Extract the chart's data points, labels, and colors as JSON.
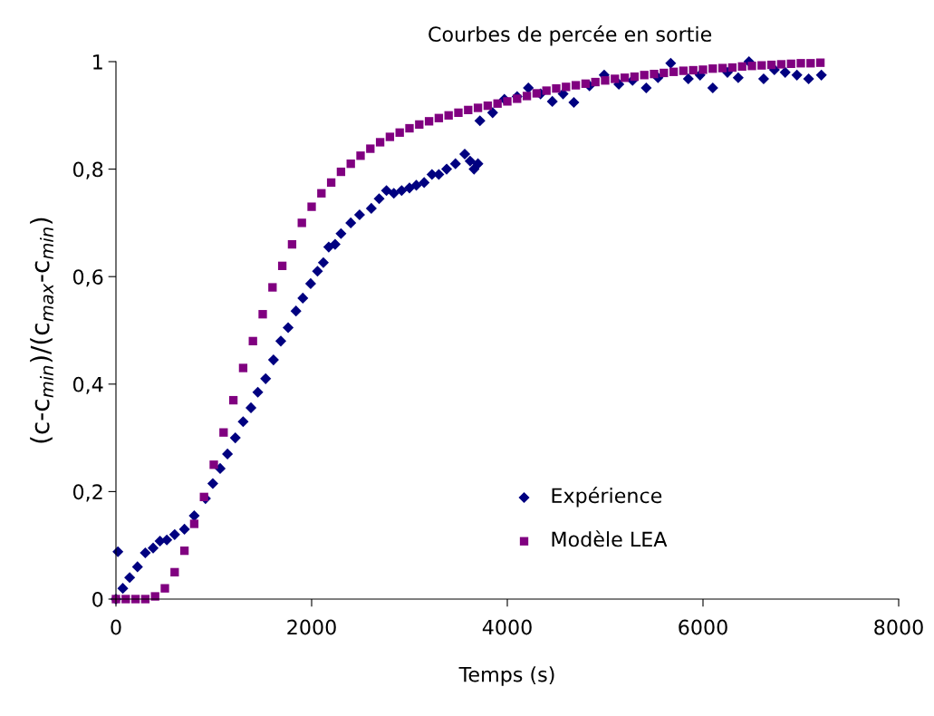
{
  "chart_data": {
    "type": "scatter",
    "title": "Courbes de percée en sortie",
    "xlabel": "Temps (s)",
    "ylabel": "(c-c$_{min}$)/(c$_{max}$-c$_{min}$)",
    "xlim": [
      0,
      8000
    ],
    "xticks": [
      0,
      2000,
      4000,
      6000,
      8000
    ],
    "ylim": [
      0,
      1
    ],
    "yticks": [
      {
        "value": 0,
        "label": "0"
      },
      {
        "value": 0.2,
        "label": "0,2"
      },
      {
        "value": 0.4,
        "label": "0,4"
      },
      {
        "value": 0.6,
        "label": "0,6"
      },
      {
        "value": 0.8,
        "label": "0,8"
      },
      {
        "value": 1,
        "label": "1"
      }
    ],
    "grid": false,
    "legend": "bottom",
    "series": [
      {
        "name": "Expérience",
        "color": "#000080",
        "marker": "diamond",
        "x": [
          0,
          20,
          70,
          140,
          220,
          300,
          380,
          450,
          520,
          600,
          700,
          800,
          915,
          990,
          1065,
          1140,
          1220,
          1300,
          1380,
          1450,
          1530,
          1610,
          1685,
          1760,
          1840,
          1910,
          1990,
          2060,
          2120,
          2175,
          2240,
          2300,
          2400,
          2490,
          2610,
          2690,
          2765,
          2840,
          2920,
          3000,
          3070,
          3150,
          3230,
          3300,
          3380,
          3470,
          3565,
          3620,
          3660,
          3700,
          3720,
          3850,
          3970,
          4100,
          4215,
          4340,
          4460,
          4570,
          4680,
          4840,
          4990,
          5140,
          5280,
          5420,
          5540,
          5670,
          5850,
          5970,
          6100,
          6250,
          6360,
          6470,
          6620,
          6730,
          6840,
          6960,
          7080,
          7210
        ],
        "values": [
          0,
          0.088,
          0.02,
          0.04,
          0.06,
          0.086,
          0.095,
          0.108,
          0.11,
          0.12,
          0.13,
          0.155,
          0.187,
          0.215,
          0.243,
          0.27,
          0.3,
          0.33,
          0.356,
          0.385,
          0.41,
          0.445,
          0.48,
          0.505,
          0.536,
          0.56,
          0.587,
          0.61,
          0.626,
          0.655,
          0.66,
          0.68,
          0.7,
          0.715,
          0.727,
          0.745,
          0.76,
          0.755,
          0.76,
          0.765,
          0.77,
          0.775,
          0.79,
          0.79,
          0.8,
          0.81,
          0.828,
          0.815,
          0.8,
          0.81,
          0.89,
          0.905,
          0.93,
          0.935,
          0.951,
          0.94,
          0.926,
          0.94,
          0.924,
          0.955,
          0.975,
          0.958,
          0.965,
          0.951,
          0.97,
          0.997,
          0.968,
          0.975,
          0.951,
          0.98,
          0.97,
          1.0,
          0.968,
          0.985,
          0.98,
          0.975,
          0.968,
          0.975
        ]
      },
      {
        "name": "Modèle LEA",
        "color": "#800080",
        "marker": "square",
        "x": [
          0,
          100,
          200,
          300,
          400,
          500,
          600,
          700,
          800,
          900,
          1000,
          1100,
          1200,
          1300,
          1400,
          1500,
          1600,
          1700,
          1800,
          1900,
          2000,
          2100,
          2200,
          2300,
          2400,
          2500,
          2600,
          2700,
          2800,
          2900,
          3000,
          3100,
          3200,
          3300,
          3400,
          3500,
          3600,
          3700,
          3800,
          3900,
          4000,
          4100,
          4200,
          4300,
          4400,
          4500,
          4600,
          4700,
          4800,
          4900,
          5000,
          5100,
          5200,
          5300,
          5400,
          5500,
          5600,
          5700,
          5800,
          5900,
          6000,
          6100,
          6200,
          6300,
          6400,
          6500,
          6600,
          6700,
          6800,
          6900,
          7000,
          7100,
          7200
        ],
        "values": [
          0,
          0,
          0,
          0,
          0.005,
          0.02,
          0.05,
          0.09,
          0.14,
          0.19,
          0.25,
          0.31,
          0.37,
          0.43,
          0.48,
          0.53,
          0.58,
          0.62,
          0.66,
          0.7,
          0.73,
          0.755,
          0.775,
          0.795,
          0.81,
          0.825,
          0.838,
          0.85,
          0.86,
          0.868,
          0.876,
          0.883,
          0.889,
          0.895,
          0.9,
          0.905,
          0.91,
          0.914,
          0.918,
          0.922,
          0.926,
          0.931,
          0.936,
          0.941,
          0.946,
          0.95,
          0.953,
          0.956,
          0.959,
          0.962,
          0.965,
          0.968,
          0.97,
          0.972,
          0.975,
          0.977,
          0.979,
          0.981,
          0.983,
          0.984,
          0.985,
          0.987,
          0.988,
          0.989,
          0.991,
          0.992,
          0.993,
          0.994,
          0.995,
          0.996,
          0.997,
          0.997,
          0.998
        ]
      }
    ]
  }
}
